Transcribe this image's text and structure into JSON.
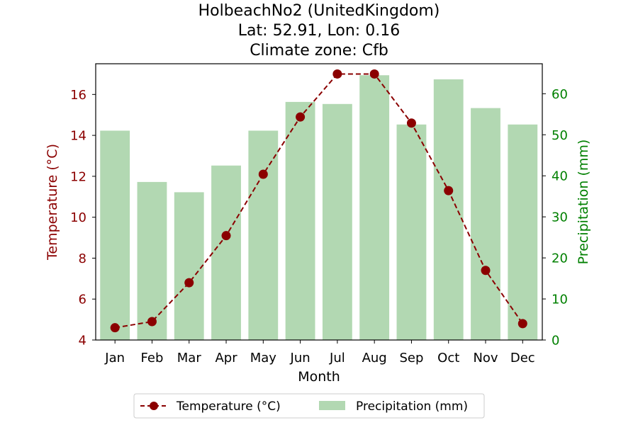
{
  "chart_data": {
    "type": "bar+line",
    "title_lines": [
      "HolbeachNo2 (UnitedKingdom)",
      "Lat: 52.91, Lon: 0.16",
      "Climate zone: Cfb"
    ],
    "xlabel": "Month",
    "ylabel_left": "Temperature (°C)",
    "ylabel_right": "Precipitation (mm)",
    "categories": [
      "Jan",
      "Feb",
      "Mar",
      "Apr",
      "May",
      "Jun",
      "Jul",
      "Aug",
      "Sep",
      "Oct",
      "Nov",
      "Dec"
    ],
    "temperature": {
      "name": "Temperature (°C)",
      "values": [
        4.6,
        4.9,
        6.8,
        9.1,
        12.1,
        14.9,
        17.0,
        17.0,
        14.6,
        11.3,
        7.4,
        4.8
      ],
      "color": "#8b0000"
    },
    "precipitation": {
      "name": "Precipitation (mm)",
      "values": [
        51,
        38.5,
        36,
        42.5,
        51,
        58,
        57.5,
        64.5,
        52.5,
        63.5,
        56.5,
        52.5
      ],
      "color": "#b2d8b2"
    },
    "ylim_left": [
      4,
      17.5
    ],
    "yticks_left": [
      "4",
      "6",
      "8",
      "10",
      "12",
      "14",
      "16"
    ],
    "ylim_right": [
      0,
      67.3
    ],
    "yticks_right": [
      "0",
      "10",
      "20",
      "30",
      "40",
      "50",
      "60"
    ],
    "left_axis_color": "#8b0000",
    "right_axis_color": "#008000",
    "legend_position": "bottom-center"
  }
}
